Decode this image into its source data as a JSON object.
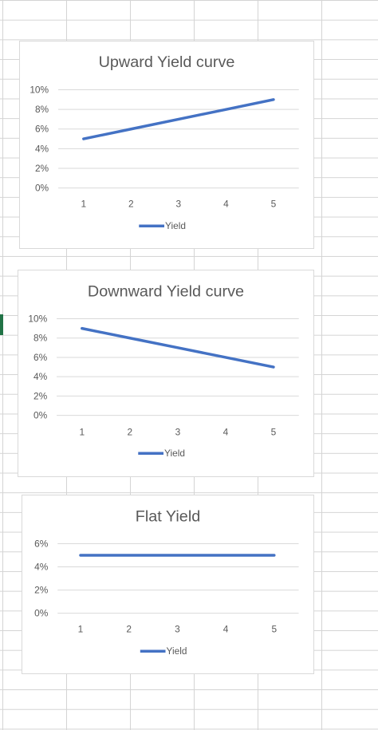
{
  "chart_data": [
    {
      "type": "line",
      "title": "Upward Yield curve",
      "xlabel": "",
      "ylabel": "",
      "categories": [
        "1",
        "2",
        "3",
        "4",
        "5"
      ],
      "series": [
        {
          "name": "Yield",
          "values": [
            0.05,
            0.06,
            0.07,
            0.08,
            0.09
          ]
        }
      ],
      "ylim": [
        0,
        0.1
      ],
      "yticks": [
        "0%",
        "2%",
        "4%",
        "6%",
        "8%",
        "10%"
      ],
      "grid": true,
      "legend": "bottom",
      "color": "#4472c4"
    },
    {
      "type": "line",
      "title": "Downward Yield curve",
      "xlabel": "",
      "ylabel": "",
      "categories": [
        "1",
        "2",
        "3",
        "4",
        "5"
      ],
      "series": [
        {
          "name": "Yield",
          "values": [
            0.09,
            0.08,
            0.07,
            0.06,
            0.05
          ]
        }
      ],
      "ylim": [
        0,
        0.1
      ],
      "yticks": [
        "0%",
        "2%",
        "4%",
        "6%",
        "8%",
        "10%"
      ],
      "grid": true,
      "legend": "bottom",
      "color": "#4472c4"
    },
    {
      "type": "line",
      "title": "Flat Yield",
      "xlabel": "",
      "ylabel": "",
      "categories": [
        "1",
        "2",
        "3",
        "4",
        "5"
      ],
      "series": [
        {
          "name": "Yield",
          "values": [
            0.05,
            0.05,
            0.05,
            0.05,
            0.05
          ]
        }
      ],
      "ylim": [
        0,
        0.06
      ],
      "yticks": [
        "0%",
        "2%",
        "4%",
        "6%"
      ],
      "grid": true,
      "legend": "bottom",
      "color": "#4472c4"
    }
  ]
}
